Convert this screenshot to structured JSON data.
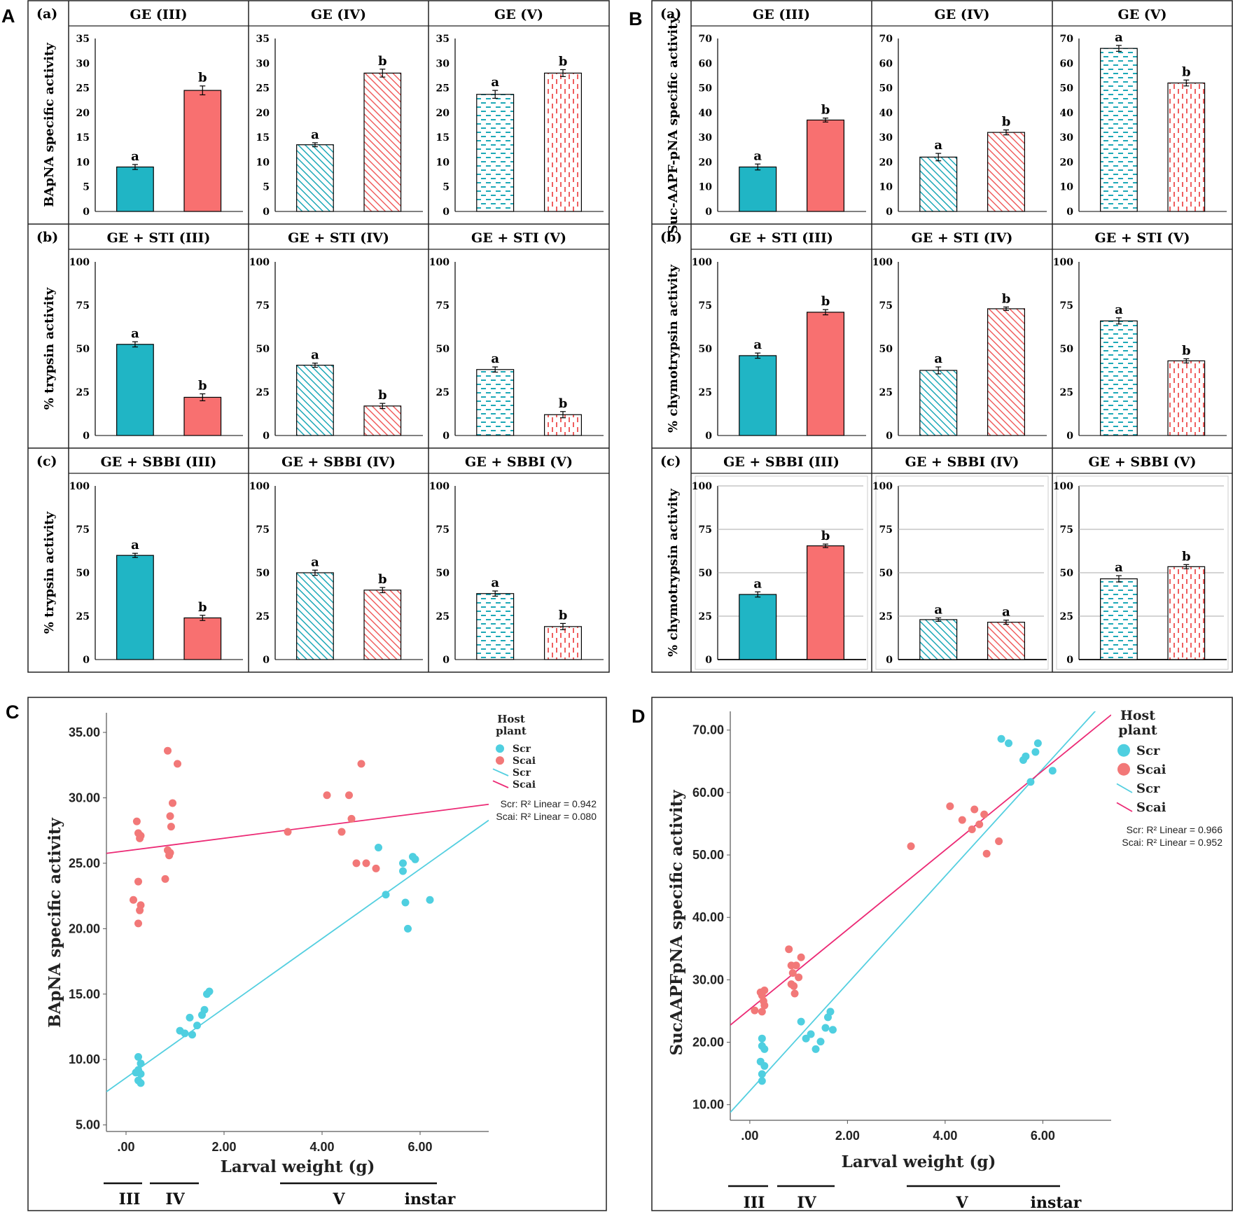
{
  "colors": {
    "scr": "#20b5c5",
    "scai": "#f87070",
    "scr_dot": "#4fcfe0",
    "scai_dot": "#f27878",
    "scr_line": "#54cfe0",
    "scai_line": "#ec2a75",
    "frame": "#222222"
  },
  "panel_letters": {
    "A": "A",
    "B": "B",
    "C": "C",
    "D": "D"
  },
  "row_labels": {
    "a": "(a)",
    "b": "(b)",
    "c": "(c)"
  },
  "panelA": {
    "rows": [
      {
        "ylabel": "BApNA specific activity",
        "ylim": [
          0,
          35
        ],
        "ticks": [
          "0",
          "5",
          "10",
          "15",
          "20",
          "25",
          "30",
          "35"
        ],
        "gridlines": false,
        "cells": [
          {
            "title": "GE (III)",
            "pattern": "solid",
            "values": [
              9,
              24.5
            ],
            "errors": [
              0.5,
              0.9
            ],
            "letters": [
              "a",
              "b"
            ]
          },
          {
            "title": "GE (IV)",
            "pattern": "diag",
            "values": [
              13.5,
              28
            ],
            "errors": [
              0.4,
              0.8
            ],
            "letters": [
              "a",
              "b"
            ]
          },
          {
            "title": "GE (V)",
            "pattern": "dash",
            "values": [
              23.7,
              28
            ],
            "errors": [
              0.8,
              0.7
            ],
            "letters": [
              "a",
              "b"
            ]
          }
        ]
      },
      {
        "ylabel": "% trypsin activity",
        "ylim": [
          0,
          100
        ],
        "ticks": [
          "0",
          "25",
          "50",
          "75",
          "100"
        ],
        "gridlines": false,
        "cells": [
          {
            "title": "GE + STI (III)",
            "pattern": "solid",
            "values": [
              52.5,
              22
            ],
            "errors": [
              1.5,
              2
            ],
            "letters": [
              "a",
              "b"
            ]
          },
          {
            "title": "GE + STI (IV)",
            "pattern": "diag",
            "values": [
              40.5,
              17
            ],
            "errors": [
              1.2,
              1.5
            ],
            "letters": [
              "a",
              "b"
            ]
          },
          {
            "title": "GE + STI  (V)",
            "pattern": "dash",
            "values": [
              38,
              12
            ],
            "errors": [
              1.5,
              1.8
            ],
            "letters": [
              "a",
              "b"
            ]
          }
        ]
      },
      {
        "ylabel": "% trypsin activity",
        "ylim": [
          0,
          100
        ],
        "ticks": [
          "0",
          "25",
          "50",
          "75",
          "100"
        ],
        "gridlines": false,
        "cells": [
          {
            "title": "GE + SBBI (III)",
            "pattern": "solid",
            "values": [
              60,
              24
            ],
            "errors": [
              1.2,
              1.5
            ],
            "letters": [
              "a",
              "b"
            ]
          },
          {
            "title": "GE + SBBI (IV)",
            "pattern": "diag",
            "values": [
              50,
              40
            ],
            "errors": [
              1.5,
              1.5
            ],
            "letters": [
              "a",
              "b"
            ]
          },
          {
            "title": "GE + SBBI  (V)",
            "pattern": "dash",
            "values": [
              38,
              19
            ],
            "errors": [
              1.5,
              1.8
            ],
            "letters": [
              "a",
              "b"
            ]
          }
        ]
      }
    ]
  },
  "panelB": {
    "rows": [
      {
        "ylabel": "Suc-AAPF-pNA specific activity",
        "ylim": [
          0,
          70
        ],
        "ticks": [
          "0",
          "10",
          "20",
          "30",
          "40",
          "50",
          "60",
          "70"
        ],
        "gridlines": false,
        "cells": [
          {
            "title": "GE (III)",
            "pattern": "solid",
            "values": [
              18,
              37
            ],
            "errors": [
              1.2,
              0.8
            ],
            "letters": [
              "a",
              "b"
            ]
          },
          {
            "title": "GE (IV)",
            "pattern": "diag",
            "values": [
              22,
              32
            ],
            "errors": [
              1.5,
              1
            ],
            "letters": [
              "a",
              "b"
            ]
          },
          {
            "title": "GE (V)",
            "pattern": "dash",
            "values": [
              66,
              52
            ],
            "errors": [
              1.2,
              1.2
            ],
            "letters": [
              "a",
              "b"
            ]
          }
        ]
      },
      {
        "ylabel": "% chymotrypsin activity",
        "ylim": [
          0,
          100
        ],
        "ticks": [
          "0",
          "25",
          "50",
          "75",
          "100"
        ],
        "gridlines": false,
        "cells": [
          {
            "title": "GE + STI (III)",
            "pattern": "solid",
            "values": [
              46,
              71
            ],
            "errors": [
              1.5,
              1.5
            ],
            "letters": [
              "a",
              "b"
            ]
          },
          {
            "title": "GE + STI (IV)",
            "pattern": "diag",
            "values": [
              37.5,
              73
            ],
            "errors": [
              2,
              1
            ],
            "letters": [
              "a",
              "b"
            ]
          },
          {
            "title": "GE + STI  (V)",
            "pattern": "dash",
            "values": [
              66,
              43
            ],
            "errors": [
              1.8,
              1.2
            ],
            "letters": [
              "a",
              "b"
            ]
          }
        ]
      },
      {
        "ylabel": "% chymotrypsin activity",
        "ylim": [
          0,
          100
        ],
        "ticks": [
          "0",
          "25",
          "50",
          "75",
          "100"
        ],
        "gridlines": true,
        "cells": [
          {
            "title": "GE + SBBI (III)",
            "pattern": "solid",
            "values": [
              37.5,
              65.5
            ],
            "errors": [
              1.5,
              1
            ],
            "letters": [
              "a",
              "b"
            ]
          },
          {
            "title": "GE + SBBI (IV)",
            "pattern": "diag",
            "values": [
              23,
              21.5
            ],
            "errors": [
              1,
              1.2
            ],
            "letters": [
              "a",
              "a"
            ]
          },
          {
            "title": "GE + SBBI  (V)",
            "pattern": "dash",
            "values": [
              46.5,
              53.5
            ],
            "errors": [
              1.8,
              1.2
            ],
            "letters": [
              "a",
              "b"
            ]
          }
        ]
      }
    ]
  },
  "chart_data": [
    {
      "type": "scatter",
      "panel": "C",
      "xlabel": "Larval weight (g)",
      "ylabel": "BApNA specific activity",
      "xlim": [
        -0.4,
        7.4
      ],
      "ylim": [
        4.5,
        36.5
      ],
      "xticks": [
        ".00",
        "2.00",
        "4.00",
        "6.00"
      ],
      "xtick_values": [
        0,
        2,
        4,
        6
      ],
      "yticks": [
        "5.00",
        "10.00",
        "15.00",
        "20.00",
        "25.00",
        "30.00",
        "35.00"
      ],
      "ytick_values": [
        5,
        10,
        15,
        20,
        25,
        30,
        35
      ],
      "legend": {
        "title": "Host plant",
        "items": [
          "Scr",
          "Scai",
          "Scr",
          "Scai"
        ]
      },
      "r2_text": [
        "Scr: R² Linear = 0.942",
        "Scai: R² Linear = 0.080"
      ],
      "instars": [
        "III",
        "IV",
        "V",
        "instar"
      ],
      "series": [
        {
          "name": "Scr",
          "points": [
            [
              0.25,
              10.2
            ],
            [
              0.3,
              9.7
            ],
            [
              0.25,
              9.2
            ],
            [
              0.3,
              8.9
            ],
            [
              0.25,
              8.4
            ],
            [
              0.3,
              8.2
            ],
            [
              0.2,
              9.0
            ],
            [
              1.1,
              12.2
            ],
            [
              1.2,
              12.0
            ],
            [
              1.3,
              13.2
            ],
            [
              1.35,
              11.9
            ],
            [
              1.45,
              12.6
            ],
            [
              1.55,
              13.4
            ],
            [
              1.6,
              13.8
            ],
            [
              1.65,
              15.0
            ],
            [
              1.7,
              15.2
            ],
            [
              5.15,
              26.2
            ],
            [
              5.3,
              22.6
            ],
            [
              5.65,
              25.0
            ],
            [
              5.65,
              24.4
            ],
            [
              5.7,
              22.0
            ],
            [
              5.75,
              20.0
            ],
            [
              5.85,
              25.5
            ],
            [
              5.9,
              25.3
            ],
            [
              6.2,
              22.2
            ]
          ]
        },
        {
          "name": "Scai",
          "points": [
            [
              0.15,
              22.2
            ],
            [
              0.22,
              28.2
            ],
            [
              0.25,
              27.3
            ],
            [
              0.28,
              26.9
            ],
            [
              0.3,
              27.1
            ],
            [
              0.25,
              23.6
            ],
            [
              0.3,
              21.8
            ],
            [
              0.28,
              21.4
            ],
            [
              0.25,
              20.4
            ],
            [
              0.8,
              23.8
            ],
            [
              0.85,
              33.6
            ],
            [
              0.85,
              26.0
            ],
            [
              0.9,
              25.8
            ],
            [
              0.88,
              25.6
            ],
            [
              0.9,
              28.6
            ],
            [
              0.92,
              27.8
            ],
            [
              0.95,
              29.6
            ],
            [
              1.05,
              32.6
            ],
            [
              3.3,
              27.4
            ],
            [
              4.1,
              30.2
            ],
            [
              4.4,
              27.4
            ],
            [
              4.55,
              30.2
            ],
            [
              4.6,
              28.4
            ],
            [
              4.7,
              25.0
            ],
            [
              4.8,
              32.6
            ],
            [
              4.9,
              25.0
            ],
            [
              5.1,
              24.6
            ]
          ]
        }
      ],
      "fit_lines": [
        {
          "name": "Scr",
          "intercept": 8.6,
          "slope": 2.66
        },
        {
          "name": "Scai",
          "intercept": 25.95,
          "slope": 0.48
        }
      ]
    },
    {
      "type": "scatter",
      "panel": "D",
      "xlabel": "Larval weight (g)",
      "ylabel": "SucAAPFpNA specific activity",
      "xlim": [
        -0.4,
        7.4
      ],
      "ylim": [
        7.5,
        73
      ],
      "xticks": [
        ".00",
        "2.00",
        "4.00",
        "6.00"
      ],
      "xtick_values": [
        0,
        2,
        4,
        6
      ],
      "yticks": [
        "10.00",
        "20.00",
        "30.00",
        "40.00",
        "50.00",
        "60.00",
        "70.00"
      ],
      "ytick_values": [
        10,
        20,
        30,
        40,
        50,
        60,
        70
      ],
      "legend": {
        "title": "Host plant",
        "items": [
          "Scr",
          "Scai",
          "Scr",
          "Scai"
        ]
      },
      "r2_text": [
        "Scr: R² Linear = 0.966",
        "Scai: R² Linear = 0.952"
      ],
      "instars": [
        "III",
        "IV",
        "V",
        "instar"
      ],
      "series": [
        {
          "name": "Scr",
          "points": [
            [
              0.25,
              20.6
            ],
            [
              0.25,
              19.4
            ],
            [
              0.3,
              18.9
            ],
            [
              0.22,
              16.9
            ],
            [
              0.3,
              16.2
            ],
            [
              0.25,
              14.9
            ],
            [
              0.25,
              13.8
            ],
            [
              1.05,
              23.3
            ],
            [
              1.15,
              20.6
            ],
            [
              1.25,
              21.3
            ],
            [
              1.35,
              18.9
            ],
            [
              1.45,
              20.1
            ],
            [
              1.55,
              22.3
            ],
            [
              1.6,
              24.0
            ],
            [
              1.65,
              24.9
            ],
            [
              1.7,
              22.0
            ],
            [
              5.15,
              68.6
            ],
            [
              5.3,
              67.9
            ],
            [
              5.6,
              65.2
            ],
            [
              5.65,
              65.8
            ],
            [
              5.75,
              61.7
            ],
            [
              5.85,
              66.5
            ],
            [
              5.9,
              67.9
            ],
            [
              6.2,
              63.5
            ]
          ]
        },
        {
          "name": "Scai",
          "points": [
            [
              0.1,
              25.1
            ],
            [
              0.22,
              28.0
            ],
            [
              0.25,
              27.5
            ],
            [
              0.28,
              26.6
            ],
            [
              0.3,
              25.9
            ],
            [
              0.25,
              24.9
            ],
            [
              0.3,
              28.3
            ],
            [
              0.8,
              34.9
            ],
            [
              0.85,
              32.3
            ],
            [
              0.88,
              31.1
            ],
            [
              0.9,
              29.0
            ],
            [
              0.92,
              27.8
            ],
            [
              0.95,
              32.3
            ],
            [
              1.0,
              30.4
            ],
            [
              1.05,
              33.6
            ],
            [
              0.85,
              29.3
            ],
            [
              3.3,
              51.4
            ],
            [
              4.1,
              57.8
            ],
            [
              4.35,
              55.6
            ],
            [
              4.55,
              54.1
            ],
            [
              4.6,
              57.3
            ],
            [
              4.7,
              54.9
            ],
            [
              4.8,
              56.5
            ],
            [
              4.85,
              50.2
            ],
            [
              5.1,
              52.2
            ]
          ]
        }
      ],
      "fit_lines": [
        {
          "name": "Scr",
          "intercept": 12.2,
          "slope": 8.6
        },
        {
          "name": "Scai",
          "intercept": 25.3,
          "slope": 6.37
        }
      ]
    }
  ]
}
